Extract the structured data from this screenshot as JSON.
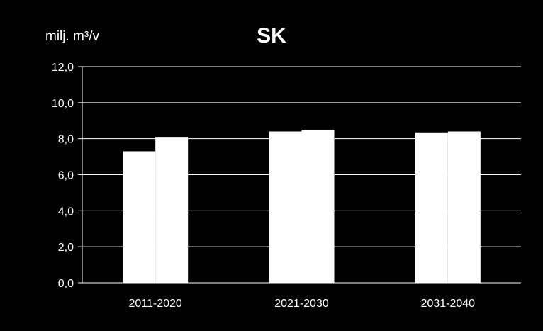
{
  "chart_data": {
    "type": "bar",
    "title": "SK",
    "unit_label": "milj. m³/v",
    "xlabel": "",
    "ylabel": "milj. m³/v",
    "categories": [
      "2011-2020",
      "2021-2030",
      "2031-2040"
    ],
    "series": [
      {
        "values": [
          7.3,
          8.4,
          8.35
        ]
      },
      {
        "values": [
          8.1,
          8.5,
          8.4
        ]
      }
    ],
    "ylim": [
      0,
      12
    ],
    "yticks": [
      "0,0",
      "2,0",
      "4,0",
      "6,0",
      "8,0",
      "10,0",
      "12,0"
    ],
    "grid": true,
    "legend": "none",
    "colors": {
      "background": "#000000",
      "bars": "#ffffff",
      "gridlines": "#ffffff",
      "text": "#ffffff"
    }
  }
}
